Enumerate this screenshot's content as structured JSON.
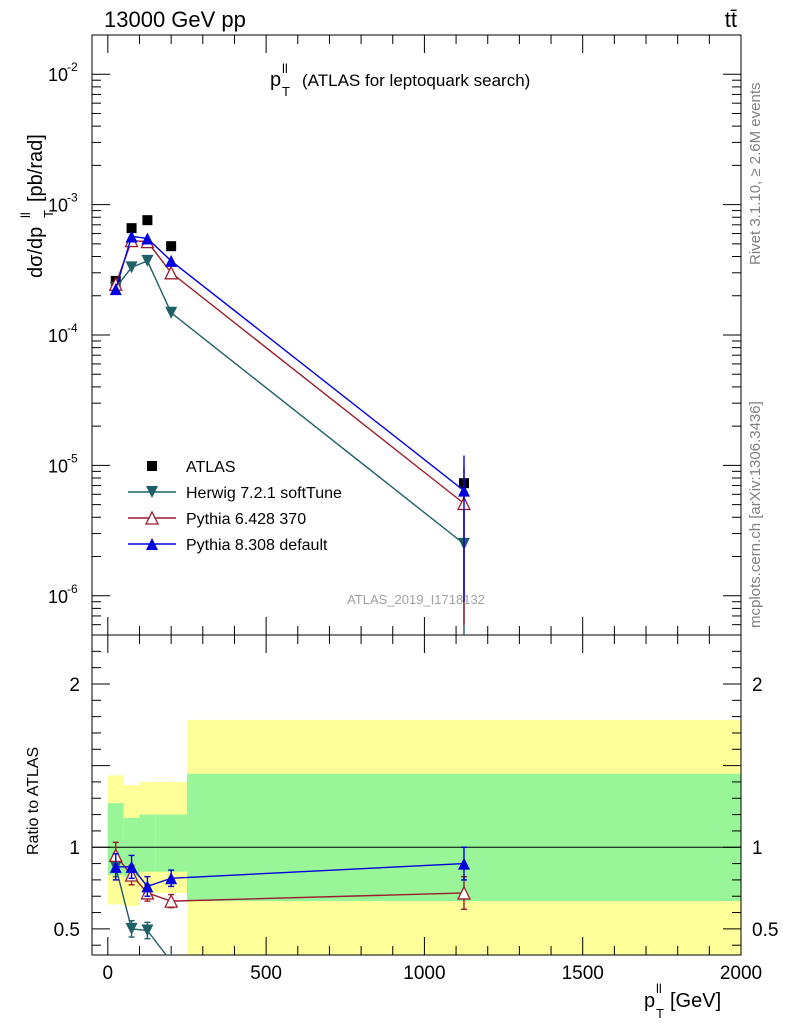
{
  "header": {
    "energy_label": "13000 GeV pp",
    "process_label": "tt̄",
    "rivet_label": "Rivet 3.1.10, ≥ 2.6M events",
    "mcplots_label": "mcplots.cern.ch [arXiv:1306.3436]",
    "analysis_label": "ATLAS_2019_I1718132"
  },
  "colors": {
    "atlas": "#000000",
    "herwig": "#1f5f68",
    "pythia6": "#9b1c2a",
    "pythia8": "#0000dd",
    "band_inner": "#98f598",
    "band_outer": "#ffff99"
  },
  "chart_data": [
    {
      "type": "line",
      "panel": "main",
      "title": "p_T^ll (ATLAS for leptoquark search)",
      "ylabel": "dσ/dp_T^ll [pb/rad]",
      "yscale": "log",
      "ylim": [
        5e-07,
        0.02
      ],
      "xlim": [
        -50,
        2000
      ],
      "ytick_labels": [
        "10^-6",
        "10^-5",
        "10^-4",
        "10^-3",
        "10^-2"
      ],
      "legend_position": "lower-left",
      "series": [
        {
          "name": "ATLAS",
          "style": "data",
          "x": [
            25,
            75,
            125,
            200,
            1125
          ],
          "y": [
            0.00026,
            0.00066,
            0.00076,
            0.00048,
            7.3e-06
          ]
        },
        {
          "name": "Herwig 7.2.1 softTune",
          "style": "down-triangle",
          "x": [
            25,
            75,
            125,
            200,
            1125
          ],
          "y": [
            0.00023,
            0.00033,
            0.00037,
            0.000148,
            2.5e-06
          ],
          "err": [
            2e-05,
            2e-05,
            2e-05,
            1.2e-05,
            3.5e-06
          ]
        },
        {
          "name": "Pythia 6.428 370",
          "style": "open-triangle",
          "x": [
            25,
            75,
            125,
            200,
            1125
          ],
          "y": [
            0.000245,
            0.00053,
            0.00052,
            0.0003,
            5.1e-06
          ],
          "err": [
            2e-05,
            3e-05,
            3e-05,
            2e-05,
            4.5e-06
          ]
        },
        {
          "name": "Pythia 8.308 default",
          "style": "up-triangle",
          "x": [
            25,
            75,
            125,
            200,
            1125
          ],
          "y": [
            0.000225,
            0.00057,
            0.00055,
            0.00037,
            6.4e-06
          ],
          "err": [
            2e-05,
            3e-05,
            3e-05,
            2e-05,
            5.5e-06
          ]
        }
      ]
    },
    {
      "type": "line",
      "panel": "ratio",
      "ylabel": "Ratio to ATLAS",
      "xlabel": "p_T^ll [GeV]",
      "ylim": [
        0.34,
        2.3
      ],
      "xlim": [
        -50,
        2000
      ],
      "x_tick_labels": [
        "0",
        "500",
        "1000",
        "1500",
        "2000"
      ],
      "y_tick_labels": [
        "0.5",
        "1",
        "2"
      ],
      "bands": {
        "edges": [
          0,
          50,
          100,
          150,
          250,
          2000
        ],
        "inner_low": [
          0.83,
          0.82,
          0.85,
          0.85,
          0.67
        ],
        "inner_high": [
          1.27,
          1.18,
          1.2,
          1.2,
          1.45
        ],
        "outer_low": [
          0.65,
          0.64,
          0.72,
          0.72,
          0.34
        ],
        "outer_high": [
          1.44,
          1.38,
          1.4,
          1.4,
          1.78
        ]
      },
      "series": [
        {
          "name": "Herwig 7.2.1 softTune",
          "x": [
            25,
            75,
            125,
            200
          ],
          "y": [
            0.88,
            0.5,
            0.49,
            0.3
          ],
          "err": [
            0.06,
            0.05,
            0.05,
            0.04
          ]
        },
        {
          "name": "Pythia 6.428 370",
          "x": [
            25,
            75,
            125,
            200,
            1125
          ],
          "y": [
            0.95,
            0.83,
            0.72,
            0.67,
            0.72
          ],
          "err": [
            0.08,
            0.06,
            0.05,
            0.04,
            0.1
          ]
        },
        {
          "name": "Pythia 8.308 default",
          "x": [
            25,
            75,
            125,
            200,
            1125
          ],
          "y": [
            0.88,
            0.88,
            0.76,
            0.81,
            0.9
          ],
          "err": [
            0.08,
            0.07,
            0.06,
            0.05,
            0.1
          ]
        }
      ]
    }
  ]
}
